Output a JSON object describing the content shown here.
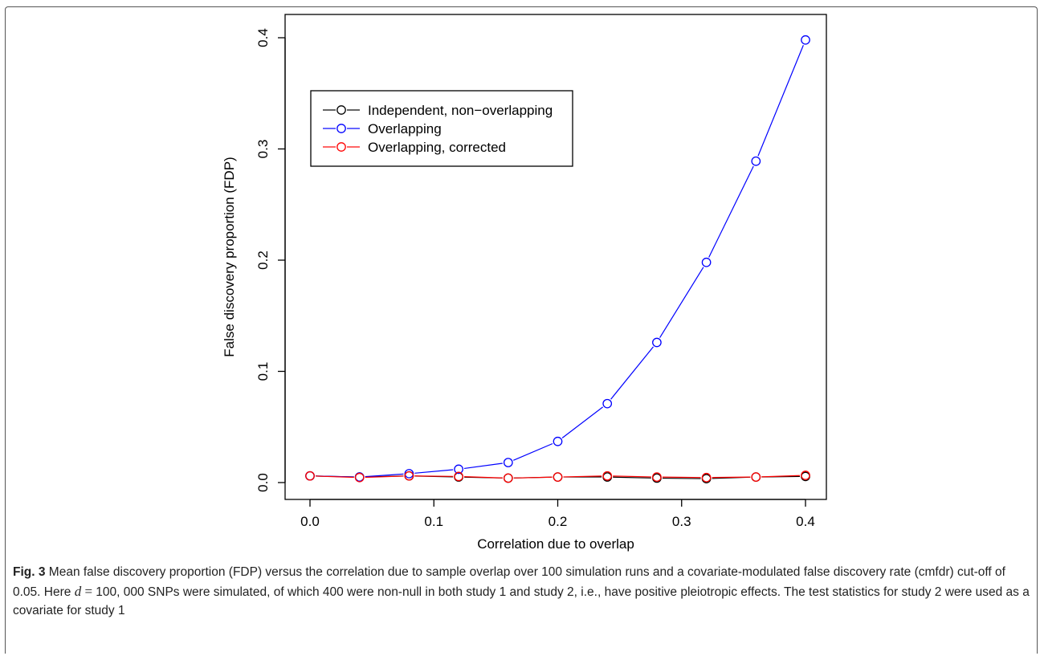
{
  "chart_data": {
    "type": "line",
    "title": "",
    "xlabel": "Correlation due to overlap",
    "ylabel": "False discovery proportion (FDP)",
    "xlim": [
      0.0,
      0.4
    ],
    "ylim": [
      0.0,
      0.4
    ],
    "xticks": [
      "0.0",
      "0.1",
      "0.2",
      "0.3",
      "0.4"
    ],
    "yticks": [
      "0.0",
      "0.1",
      "0.2",
      "0.3",
      "0.4"
    ],
    "grid": false,
    "legend_position": "top-left",
    "x": [
      0.0,
      0.04,
      0.08,
      0.12,
      0.16,
      0.2,
      0.24,
      0.28,
      0.32,
      0.36,
      0.4
    ],
    "series": [
      {
        "name": "Independent, non−overlapping",
        "color": "#000000",
        "values": [
          0.006,
          0.005,
          0.006,
          0.005,
          0.004,
          0.005,
          0.005,
          0.004,
          0.0035,
          0.005,
          0.0055
        ]
      },
      {
        "name": "Overlapping",
        "color": "#0000ff",
        "values": [
          0.006,
          0.005,
          0.008,
          0.012,
          0.018,
          0.037,
          0.071,
          0.126,
          0.198,
          0.289,
          0.398
        ]
      },
      {
        "name": "Overlapping, corrected",
        "color": "#ff0000",
        "values": [
          0.006,
          0.0045,
          0.006,
          0.0055,
          0.004,
          0.005,
          0.006,
          0.005,
          0.0045,
          0.005,
          0.0065
        ]
      }
    ]
  },
  "caption": {
    "label": "Fig. 3",
    "text_1": " Mean false discovery proportion (FDP) versus the correlation due to sample overlap over 100 simulation runs and a covariate-modulated false discovery rate (cmfdr) cut-off of 0.05. Here ",
    "var_d": "d",
    "equals": " = ",
    "value_d": "100, 000",
    "text_2": " SNPs were simulated, of which 400 were non-null in both study 1 and study 2, i.e., have positive pleiotropic effects. The test statistics for study 2 were used as a covariate for study 1"
  }
}
